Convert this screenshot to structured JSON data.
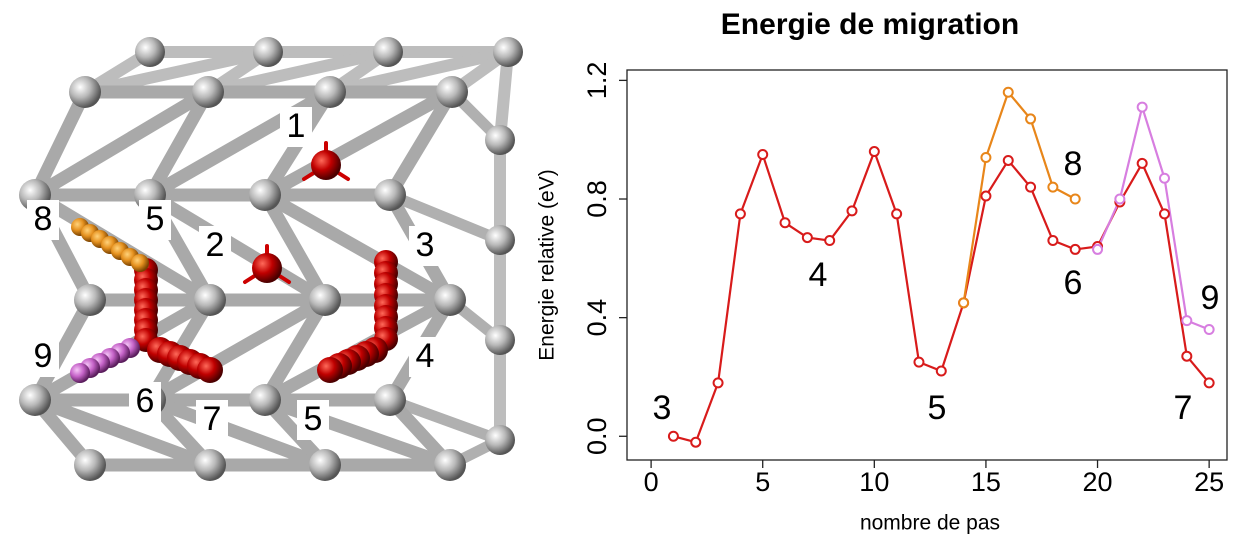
{
  "illustration": {
    "labels": [
      "1",
      "2",
      "3",
      "4",
      "5",
      "5",
      "6",
      "7",
      "8",
      "9"
    ]
  },
  "chart_data": {
    "type": "line",
    "title": "Energie de migration",
    "x_label": "nombre de pas",
    "y_label": "Energie relative (eV)",
    "x": [
      1,
      2,
      3,
      4,
      5,
      6,
      7,
      8,
      9,
      10,
      11,
      12,
      13,
      14,
      15,
      16,
      17,
      18,
      19,
      20,
      21,
      22,
      23,
      24,
      25
    ],
    "series": [
      {
        "color": "#d81b1b",
        "values": [
          0.0,
          -0.02,
          0.18,
          0.75,
          0.95,
          0.72,
          0.67,
          0.66,
          0.76,
          0.96,
          0.75,
          0.25,
          0.22,
          0.45,
          0.81,
          0.93,
          0.84,
          0.66,
          0.63,
          0.64,
          0.79,
          0.92,
          0.75,
          0.27,
          0.18
        ]
      },
      {
        "color": "#e8861a",
        "values": [
          null,
          null,
          null,
          null,
          null,
          null,
          null,
          null,
          null,
          null,
          null,
          null,
          null,
          0.45,
          0.94,
          1.16,
          1.07,
          0.84,
          0.8,
          null,
          null,
          null,
          null,
          null,
          null
        ]
      },
      {
        "color": "#d77ee0",
        "values": [
          null,
          null,
          null,
          null,
          null,
          null,
          null,
          null,
          null,
          null,
          null,
          null,
          null,
          null,
          null,
          null,
          null,
          null,
          null,
          0.63,
          0.8,
          1.11,
          0.87,
          0.39,
          0.36
        ]
      }
    ],
    "annotations": [
      "3",
      "4",
      "5",
      "8",
      "6",
      "9",
      "7"
    ],
    "xlim": [
      -1.08,
      25.8
    ],
    "xticks": [
      0,
      5,
      10,
      15,
      20,
      25
    ],
    "ylim": [
      -0.08,
      1.235
    ],
    "yticks": [
      {
        "value": 0,
        "label": "0.0"
      },
      {
        "value": 0.4,
        "label": "0.4"
      },
      {
        "value": 0.8,
        "label": "0.8"
      },
      {
        "value": 1.2,
        "label": "1.2"
      }
    ]
  }
}
